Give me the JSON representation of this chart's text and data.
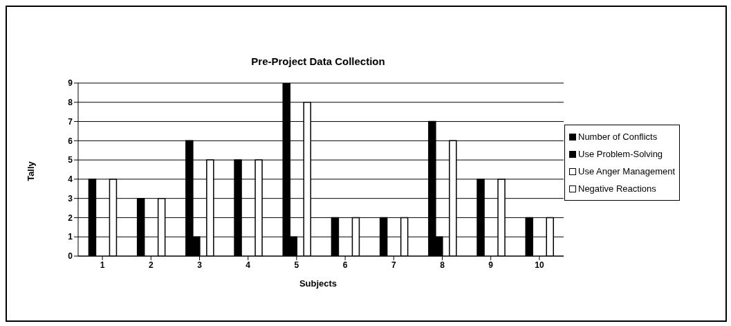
{
  "chart_data": {
    "type": "bar",
    "title": "Pre-Project Data Collection",
    "xlabel": "Subjects",
    "ylabel": "Tally",
    "categories": [
      "1",
      "2",
      "3",
      "4",
      "5",
      "6",
      "7",
      "8",
      "9",
      "10"
    ],
    "series": [
      {
        "name": "Number of Conflicts",
        "color": "#000000",
        "values": [
          4,
          3,
          6,
          5,
          9,
          2,
          2,
          7,
          4,
          2
        ]
      },
      {
        "name": "Use Problem-Solving",
        "color": "#000000",
        "values": [
          0,
          0,
          1,
          0,
          1,
          0,
          0,
          1,
          0,
          0
        ]
      },
      {
        "name": "Use Anger Management",
        "color": "#ffffff",
        "values": [
          0,
          0,
          0,
          0,
          0,
          0,
          0,
          0,
          0,
          0
        ]
      },
      {
        "name": "Negative Reactions",
        "color": "#ffffff",
        "values": [
          4,
          3,
          5,
          5,
          8,
          2,
          2,
          6,
          4,
          2
        ]
      }
    ],
    "ylim": [
      0,
      9
    ],
    "yticks": [
      0,
      1,
      2,
      3,
      4,
      5,
      6,
      7,
      8,
      9
    ],
    "grid": "y",
    "legend": "right"
  }
}
